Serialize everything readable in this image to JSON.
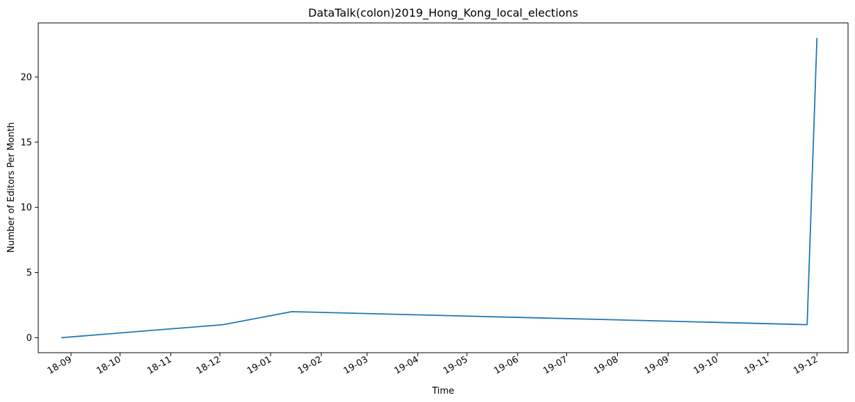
{
  "chart_data": {
    "type": "line",
    "title": "DataTalk(colon)2019_Hong_Kong_local_elections",
    "xlabel": "Time",
    "ylabel": "Number of Editors Per Month",
    "x_tick_labels": [
      "18-09",
      "18-10",
      "18-11",
      "18-12",
      "19-01",
      "19-02",
      "19-03",
      "19-04",
      "19-05",
      "19-06",
      "19-07",
      "19-08",
      "19-09",
      "19-10",
      "19-11",
      "19-12"
    ],
    "y_ticks": [
      0,
      5,
      10,
      15,
      20
    ],
    "ylim": [
      -1.15,
      24.15
    ],
    "xlim": [
      "2018-08-12",
      "2019-12-20"
    ],
    "grid": false,
    "series": [
      {
        "color": "#1f77b4",
        "points": [
          {
            "x": "2018-08-26",
            "y": 0
          },
          {
            "x": "2018-12-03",
            "y": 1
          },
          {
            "x": "2019-01-14",
            "y": 2
          },
          {
            "x": "2019-11-25",
            "y": 1
          },
          {
            "x": "2019-12-01",
            "y": 23
          }
        ]
      }
    ]
  }
}
